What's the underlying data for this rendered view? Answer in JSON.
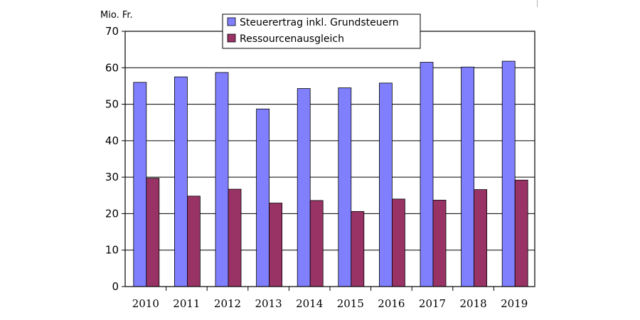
{
  "chart_data": {
    "type": "bar",
    "ylabel": "Mio. Fr.",
    "categories": [
      "2010",
      "2011",
      "2012",
      "2013",
      "2014",
      "2015",
      "2016",
      "2017",
      "2018",
      "2019"
    ],
    "series": [
      {
        "name": "Steuerertrag inkl. Grundsteuern",
        "color": "#8080ff",
        "values": [
          56.0,
          57.5,
          58.7,
          48.7,
          54.3,
          54.5,
          55.8,
          61.5,
          60.2,
          61.8
        ]
      },
      {
        "name": "Ressourcenausgleich",
        "color": "#993366",
        "values": [
          29.7,
          24.8,
          26.7,
          22.9,
          23.6,
          20.6,
          24.0,
          23.7,
          26.6,
          29.2
        ]
      }
    ],
    "ylim": [
      0,
      70
    ],
    "yticks": [
      0,
      10,
      20,
      30,
      40,
      50,
      60,
      70
    ],
    "grid": true,
    "legend_position": "top"
  }
}
